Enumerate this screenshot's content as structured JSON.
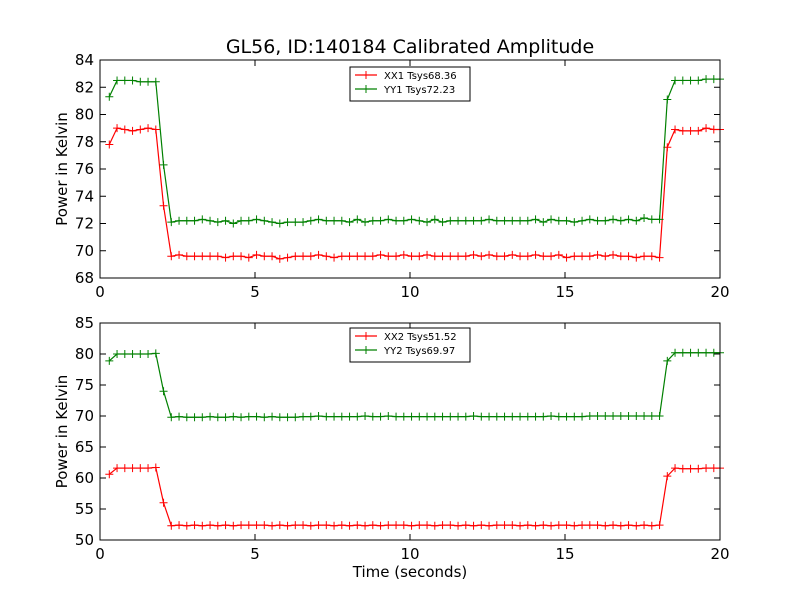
{
  "figure": {
    "title": "GL56, ID:140184 Calibrated Amplitude"
  },
  "chart_data": [
    {
      "type": "line",
      "title": "GL56, ID:140184 Calibrated Amplitude",
      "xlabel": "",
      "ylabel": "Power in Kelvin",
      "xlim": [
        0,
        20
      ],
      "ylim": [
        68,
        84
      ],
      "xticks": [
        0,
        5,
        10,
        15,
        20
      ],
      "yticks": [
        68,
        70,
        72,
        74,
        76,
        78,
        80,
        82,
        84
      ],
      "grid": false,
      "legend_position": "top-center",
      "x": [
        0.3,
        0.55,
        0.8,
        1.05,
        1.3,
        1.55,
        1.8,
        2.05,
        2.3,
        2.55,
        2.8,
        3.05,
        3.3,
        3.55,
        3.8,
        4.05,
        4.3,
        4.55,
        4.8,
        5.05,
        5.3,
        5.55,
        5.8,
        6.05,
        6.3,
        6.55,
        6.8,
        7.05,
        7.3,
        7.55,
        7.8,
        8.05,
        8.3,
        8.55,
        8.8,
        9.05,
        9.3,
        9.55,
        9.8,
        10.05,
        10.3,
        10.55,
        10.8,
        11.05,
        11.3,
        11.55,
        11.8,
        12.05,
        12.3,
        12.55,
        12.8,
        13.05,
        13.3,
        13.55,
        13.8,
        14.05,
        14.3,
        14.55,
        14.8,
        15.05,
        15.3,
        15.55,
        15.8,
        16.05,
        16.3,
        16.55,
        16.8,
        17.05,
        17.3,
        17.55,
        17.8,
        18.05,
        18.3,
        18.55,
        18.8,
        19.05,
        19.3,
        19.55,
        19.8,
        20.0
      ],
      "series": [
        {
          "name": "XX1 Tsys68.36",
          "color": "#ff0000",
          "values": [
            77.8,
            79.0,
            78.9,
            78.8,
            78.9,
            79.0,
            78.9,
            73.3,
            69.6,
            69.7,
            69.6,
            69.6,
            69.6,
            69.6,
            69.6,
            69.5,
            69.6,
            69.6,
            69.5,
            69.7,
            69.6,
            69.6,
            69.4,
            69.5,
            69.6,
            69.6,
            69.6,
            69.7,
            69.6,
            69.5,
            69.6,
            69.6,
            69.6,
            69.6,
            69.6,
            69.7,
            69.6,
            69.6,
            69.7,
            69.6,
            69.6,
            69.7,
            69.6,
            69.6,
            69.6,
            69.6,
            69.6,
            69.7,
            69.6,
            69.7,
            69.6,
            69.6,
            69.7,
            69.6,
            69.6,
            69.7,
            69.6,
            69.6,
            69.7,
            69.5,
            69.6,
            69.6,
            69.6,
            69.7,
            69.6,
            69.7,
            69.6,
            69.6,
            69.5,
            69.6,
            69.6,
            69.5,
            77.6,
            78.9,
            78.8,
            78.8,
            78.8,
            79.0,
            78.9,
            78.9
          ]
        },
        {
          "name": "YY1 Tsys72.23",
          "color": "#008000",
          "values": [
            81.3,
            82.5,
            82.5,
            82.5,
            82.4,
            82.4,
            82.4,
            76.3,
            72.1,
            72.2,
            72.2,
            72.2,
            72.3,
            72.2,
            72.1,
            72.2,
            72.0,
            72.2,
            72.2,
            72.3,
            72.2,
            72.1,
            72.0,
            72.1,
            72.1,
            72.1,
            72.2,
            72.3,
            72.2,
            72.2,
            72.2,
            72.1,
            72.3,
            72.1,
            72.2,
            72.2,
            72.3,
            72.2,
            72.2,
            72.3,
            72.2,
            72.1,
            72.3,
            72.1,
            72.2,
            72.2,
            72.2,
            72.2,
            72.2,
            72.3,
            72.2,
            72.2,
            72.2,
            72.2,
            72.2,
            72.3,
            72.1,
            72.3,
            72.2,
            72.2,
            72.1,
            72.2,
            72.3,
            72.2,
            72.2,
            72.3,
            72.2,
            72.3,
            72.2,
            72.4,
            72.3,
            72.3,
            81.1,
            82.5,
            82.5,
            82.5,
            82.5,
            82.6,
            82.6,
            82.6
          ]
        }
      ]
    },
    {
      "type": "line",
      "title": "",
      "xlabel": "Time (seconds)",
      "ylabel": "Power in Kelvin",
      "xlim": [
        0,
        20
      ],
      "ylim": [
        50,
        85
      ],
      "xticks": [
        0,
        5,
        10,
        15,
        20
      ],
      "yticks": [
        50,
        55,
        60,
        65,
        70,
        75,
        80,
        85
      ],
      "grid": false,
      "legend_position": "top-center",
      "x": [
        0.3,
        0.55,
        0.8,
        1.05,
        1.3,
        1.55,
        1.8,
        2.05,
        2.3,
        2.55,
        2.8,
        3.05,
        3.3,
        3.55,
        3.8,
        4.05,
        4.3,
        4.55,
        4.8,
        5.05,
        5.3,
        5.55,
        5.8,
        6.05,
        6.3,
        6.55,
        6.8,
        7.05,
        7.3,
        7.55,
        7.8,
        8.05,
        8.3,
        8.55,
        8.8,
        9.05,
        9.3,
        9.55,
        9.8,
        10.05,
        10.3,
        10.55,
        10.8,
        11.05,
        11.3,
        11.55,
        11.8,
        12.05,
        12.3,
        12.55,
        12.8,
        13.05,
        13.3,
        13.55,
        13.8,
        14.05,
        14.3,
        14.55,
        14.8,
        15.05,
        15.3,
        15.55,
        15.8,
        16.05,
        16.3,
        16.55,
        16.8,
        17.05,
        17.3,
        17.55,
        17.8,
        18.05,
        18.3,
        18.55,
        18.8,
        19.05,
        19.3,
        19.55,
        19.8,
        20.0
      ],
      "series": [
        {
          "name": "XX2 Tsys51.52",
          "color": "#ff0000",
          "values": [
            60.6,
            61.6,
            61.6,
            61.6,
            61.6,
            61.6,
            61.7,
            56.0,
            52.3,
            52.4,
            52.3,
            52.4,
            52.3,
            52.4,
            52.3,
            52.4,
            52.3,
            52.4,
            52.4,
            52.4,
            52.4,
            52.3,
            52.4,
            52.3,
            52.4,
            52.4,
            52.3,
            52.4,
            52.4,
            52.3,
            52.4,
            52.3,
            52.4,
            52.3,
            52.4,
            52.3,
            52.4,
            52.4,
            52.4,
            52.3,
            52.4,
            52.4,
            52.3,
            52.4,
            52.4,
            52.3,
            52.4,
            52.3,
            52.4,
            52.3,
            52.4,
            52.4,
            52.4,
            52.3,
            52.4,
            52.3,
            52.4,
            52.3,
            52.4,
            52.4,
            52.3,
            52.4,
            52.4,
            52.4,
            52.3,
            52.4,
            52.3,
            52.4,
            52.3,
            52.4,
            52.3,
            52.4,
            60.3,
            61.6,
            61.5,
            61.5,
            61.5,
            61.6,
            61.6,
            61.6
          ]
        },
        {
          "name": "YY2 Tsys69.97",
          "color": "#008000",
          "values": [
            78.9,
            80.0,
            80.0,
            80.0,
            80.0,
            80.0,
            80.1,
            74.0,
            69.8,
            69.9,
            69.8,
            69.8,
            69.8,
            69.9,
            69.8,
            69.8,
            69.9,
            69.8,
            69.9,
            69.9,
            69.8,
            69.9,
            69.8,
            69.8,
            69.8,
            69.9,
            69.9,
            70.0,
            69.9,
            69.9,
            69.9,
            69.9,
            69.9,
            70.0,
            69.9,
            69.9,
            70.0,
            69.9,
            69.9,
            69.9,
            69.9,
            69.9,
            69.9,
            69.9,
            69.9,
            69.9,
            69.9,
            70.0,
            69.9,
            69.9,
            69.9,
            69.9,
            69.9,
            69.9,
            69.9,
            69.9,
            69.9,
            70.0,
            69.9,
            69.9,
            69.9,
            69.9,
            70.0,
            70.0,
            70.0,
            70.0,
            70.0,
            70.0,
            70.0,
            70.0,
            70.0,
            70.0,
            78.9,
            80.2,
            80.2,
            80.2,
            80.2,
            80.2,
            80.2,
            80.2
          ]
        }
      ]
    }
  ]
}
